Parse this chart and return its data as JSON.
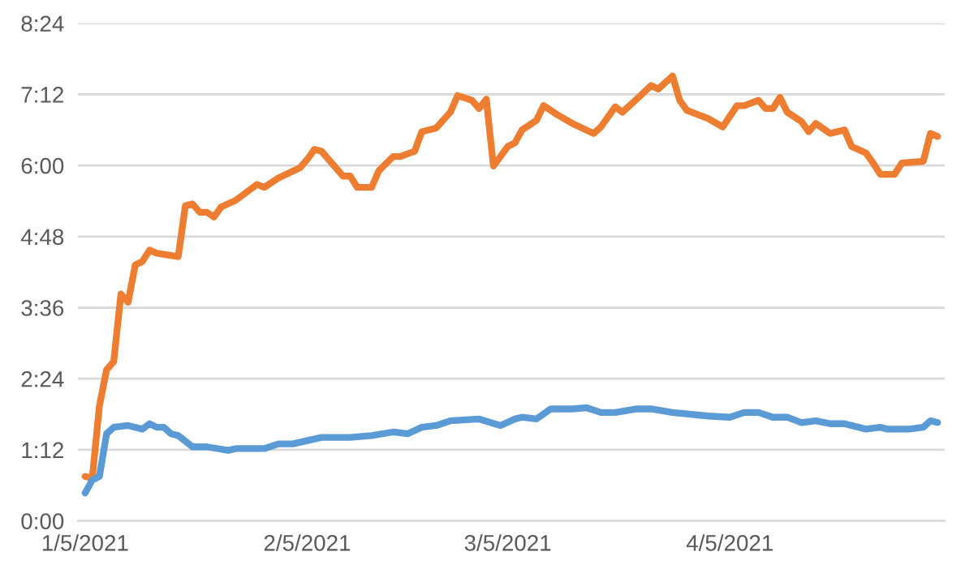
{
  "chart_data": {
    "type": "line",
    "xlim": [
      "2021-01-04",
      "2021-05-05"
    ],
    "xticks": [
      {
        "value": "2021-01-05",
        "label": "1/5/2021"
      },
      {
        "value": "2021-02-05",
        "label": "2/5/2021"
      },
      {
        "value": "2021-03-05",
        "label": "3/5/2021"
      },
      {
        "value": "2021-04-05",
        "label": "4/5/2021"
      }
    ],
    "ylim": [
      0,
      8.4
    ],
    "yticks": [
      {
        "value": 0,
        "label": "0:00"
      },
      {
        "value": 1.2,
        "label": "1:12"
      },
      {
        "value": 2.4,
        "label": "2:24"
      },
      {
        "value": 3.6,
        "label": "3:36"
      },
      {
        "value": 4.8,
        "label": "4:48"
      },
      {
        "value": 6.0,
        "label": "6:00"
      },
      {
        "value": 7.2,
        "label": "7:12"
      },
      {
        "value": 8.4,
        "label": "8:24"
      }
    ],
    "grid": "y",
    "marker": "none",
    "line_style": "solid",
    "series": [
      {
        "color": "#ed7d31",
        "x": [
          "2021-01-05",
          "2021-01-06",
          "2021-01-07",
          "2021-01-08",
          "2021-01-09",
          "2021-01-10",
          "2021-01-11",
          "2021-01-12",
          "2021-01-13",
          "2021-01-14",
          "2021-01-15",
          "2021-01-18",
          "2021-01-19",
          "2021-01-20",
          "2021-01-21",
          "2021-01-22",
          "2021-01-23",
          "2021-01-24",
          "2021-01-26",
          "2021-01-29",
          "2021-01-30",
          "2021-02-01",
          "2021-02-04",
          "2021-02-05",
          "2021-02-06",
          "2021-02-07",
          "2021-02-09",
          "2021-02-10",
          "2021-02-11",
          "2021-02-12",
          "2021-02-14",
          "2021-02-15",
          "2021-02-17",
          "2021-02-18",
          "2021-02-20",
          "2021-02-21",
          "2021-02-23",
          "2021-02-25",
          "2021-02-26",
          "2021-02-28",
          "2021-03-01",
          "2021-03-02",
          "2021-03-03",
          "2021-03-05",
          "2021-03-06",
          "2021-03-07",
          "2021-03-09",
          "2021-03-10",
          "2021-03-12",
          "2021-03-14",
          "2021-03-17",
          "2021-03-18",
          "2021-03-20",
          "2021-03-21",
          "2021-03-23",
          "2021-03-25",
          "2021-03-26",
          "2021-03-28",
          "2021-03-29",
          "2021-03-30",
          "2021-04-02",
          "2021-04-04",
          "2021-04-06",
          "2021-04-07",
          "2021-04-09",
          "2021-04-10",
          "2021-04-11",
          "2021-04-12",
          "2021-04-13",
          "2021-04-15",
          "2021-04-16",
          "2021-04-17",
          "2021-04-19",
          "2021-04-21",
          "2021-04-22",
          "2021-04-24",
          "2021-04-25",
          "2021-04-26",
          "2021-04-28",
          "2021-04-29",
          "2021-05-02",
          "2021-05-03",
          "2021-05-04"
        ],
        "values": [
          0.75,
          0.72,
          1.94,
          2.55,
          2.69,
          3.83,
          3.69,
          4.32,
          4.38,
          4.57,
          4.52,
          4.46,
          5.32,
          5.35,
          5.21,
          5.21,
          5.13,
          5.3,
          5.41,
          5.68,
          5.63,
          5.79,
          5.96,
          6.1,
          6.27,
          6.24,
          5.96,
          5.82,
          5.82,
          5.63,
          5.63,
          5.91,
          6.15,
          6.15,
          6.24,
          6.57,
          6.63,
          6.9,
          7.18,
          7.1,
          6.96,
          7.12,
          5.99,
          6.32,
          6.38,
          6.6,
          6.76,
          7.01,
          6.85,
          6.71,
          6.54,
          6.65,
          6.99,
          6.9,
          7.12,
          7.35,
          7.29,
          7.51,
          7.1,
          6.93,
          6.79,
          6.65,
          7.01,
          7.01,
          7.1,
          6.96,
          6.96,
          7.15,
          6.9,
          6.74,
          6.57,
          6.71,
          6.54,
          6.6,
          6.32,
          6.21,
          6.04,
          5.85,
          5.85,
          6.04,
          6.07,
          6.54,
          6.49
        ]
      },
      {
        "color": "#5b9bd5",
        "x": [
          "2021-01-05",
          "2021-01-06",
          "2021-01-07",
          "2021-01-08",
          "2021-01-09",
          "2021-01-11",
          "2021-01-13",
          "2021-01-14",
          "2021-01-15",
          "2021-01-16",
          "2021-01-17",
          "2021-01-18",
          "2021-01-20",
          "2021-01-22",
          "2021-01-25",
          "2021-01-26",
          "2021-01-30",
          "2021-02-01",
          "2021-02-03",
          "2021-02-07",
          "2021-02-11",
          "2021-02-14",
          "2021-02-17",
          "2021-02-19",
          "2021-02-21",
          "2021-02-23",
          "2021-02-25",
          "2021-03-01",
          "2021-03-04",
          "2021-03-06",
          "2021-03-07",
          "2021-03-09",
          "2021-03-11",
          "2021-03-14",
          "2021-03-16",
          "2021-03-18",
          "2021-03-20",
          "2021-03-23",
          "2021-03-25",
          "2021-03-28",
          "2021-04-02",
          "2021-04-05",
          "2021-04-07",
          "2021-04-09",
          "2021-04-11",
          "2021-04-13",
          "2021-04-15",
          "2021-04-17",
          "2021-04-19",
          "2021-04-21",
          "2021-04-24",
          "2021-04-26",
          "2021-04-27",
          "2021-04-30",
          "2021-05-02",
          "2021-05-03",
          "2021-05-04"
        ],
        "values": [
          0.47,
          0.69,
          0.75,
          1.47,
          1.58,
          1.61,
          1.55,
          1.64,
          1.58,
          1.58,
          1.47,
          1.44,
          1.25,
          1.25,
          1.19,
          1.22,
          1.22,
          1.3,
          1.3,
          1.41,
          1.41,
          1.44,
          1.5,
          1.47,
          1.58,
          1.61,
          1.69,
          1.72,
          1.61,
          1.72,
          1.75,
          1.72,
          1.89,
          1.89,
          1.91,
          1.83,
          1.83,
          1.89,
          1.89,
          1.83,
          1.77,
          1.75,
          1.83,
          1.83,
          1.75,
          1.75,
          1.66,
          1.69,
          1.64,
          1.64,
          1.55,
          1.58,
          1.55,
          1.55,
          1.58,
          1.69,
          1.66
        ]
      }
    ]
  }
}
